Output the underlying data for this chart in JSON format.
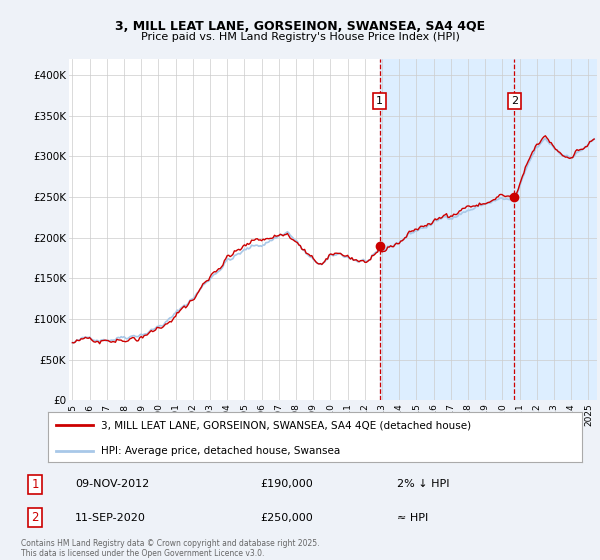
{
  "title_line1": "3, MILL LEAT LANE, GORSEINON, SWANSEA, SA4 4QE",
  "title_line2": "Price paid vs. HM Land Registry's House Price Index (HPI)",
  "ylabel_ticks": [
    "£0",
    "£50K",
    "£100K",
    "£150K",
    "£200K",
    "£250K",
    "£300K",
    "£350K",
    "£400K"
  ],
  "ytick_values": [
    0,
    50000,
    100000,
    150000,
    200000,
    250000,
    300000,
    350000,
    400000
  ],
  "ylim": [
    0,
    420000
  ],
  "xlim_start": 1994.8,
  "xlim_end": 2025.5,
  "xtick_years": [
    1995,
    1996,
    1997,
    1998,
    1999,
    2000,
    2001,
    2002,
    2003,
    2004,
    2005,
    2006,
    2007,
    2008,
    2009,
    2010,
    2011,
    2012,
    2013,
    2014,
    2015,
    2016,
    2017,
    2018,
    2019,
    2020,
    2021,
    2022,
    2023,
    2024,
    2025
  ],
  "hpi_color": "#a8c8e8",
  "price_color": "#cc0000",
  "purchase1_x": 2012.86,
  "purchase1_y": 190000,
  "purchase1_label": "1",
  "purchase1_date": "09-NOV-2012",
  "purchase1_price": "£190,000",
  "purchase1_note": "2% ↓ HPI",
  "purchase2_x": 2020.7,
  "purchase2_y": 250000,
  "purchase2_label": "2",
  "purchase2_date": "11-SEP-2020",
  "purchase2_price": "£250,000",
  "purchase2_note": "≈ HPI",
  "vline_color": "#cc0000",
  "shade_color": "#ddeeff",
  "legend_label1": "3, MILL LEAT LANE, GORSEINON, SWANSEA, SA4 4QE (detached house)",
  "legend_label2": "HPI: Average price, detached house, Swansea",
  "footer_line1": "Contains HM Land Registry data © Crown copyright and database right 2025.",
  "footer_line2": "This data is licensed under the Open Government Licence v3.0.",
  "background_color": "#eef2f8",
  "plot_bg_color": "#ffffff",
  "grid_color": "#cccccc"
}
